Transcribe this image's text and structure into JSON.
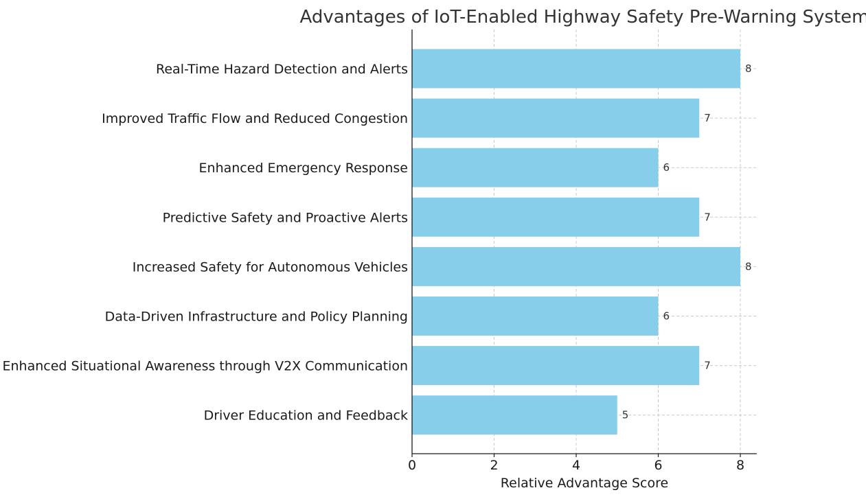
{
  "chart_data": {
    "type": "bar",
    "orientation": "horizontal",
    "title": "Advantages of IoT-Enabled Highway Safety Pre-Warning System",
    "xlabel": "Relative Advantage Score",
    "ylabel": "",
    "categories": [
      "Real-Time Hazard Detection and Alerts",
      "Improved Traffic Flow and Reduced Congestion",
      "Enhanced Emergency Response",
      "Predictive Safety and Proactive Alerts",
      "Increased Safety for Autonomous Vehicles",
      "Data-Driven Infrastructure and Policy Planning",
      "Enhanced Situational Awareness through V2X Communication",
      "Driver Education and Feedback"
    ],
    "values": [
      8,
      7,
      6,
      7,
      8,
      6,
      7,
      5
    ],
    "xlim": [
      0,
      8.4
    ],
    "xticks": [
      "0",
      "2",
      "4",
      "6",
      "8"
    ],
    "grid": true,
    "bar_color": "#87CEEB"
  }
}
